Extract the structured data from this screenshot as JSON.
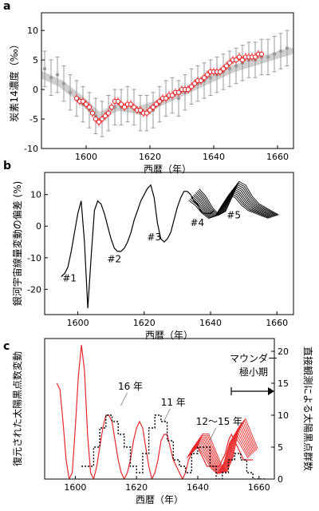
{
  "chart_data": [
    {
      "panel": "a",
      "type": "scatter",
      "xlabel": "西暦（年）",
      "ylabel": "炭素14濃度（‰）",
      "xlim": [
        1586,
        1665
      ],
      "ylim": [
        -10,
        13
      ],
      "xticks": [
        1600,
        1620,
        1640,
        1660
      ],
      "yticks": [
        -10,
        -5,
        0,
        5,
        10
      ],
      "grid": false,
      "colors": {
        "gray_data": "#9a9a9a",
        "red_data": "#e8282b",
        "smooth_band": "#cfcfcf"
      },
      "series": [
        {
          "style": "gray-errorbars",
          "x": [
            1587,
            1589,
            1591,
            1593,
            1595,
            1597,
            1599,
            1601,
            1603,
            1605,
            1607,
            1609,
            1611,
            1613,
            1615,
            1617,
            1619,
            1621,
            1623,
            1625,
            1627,
            1629,
            1631,
            1633,
            1635,
            1637,
            1639,
            1641,
            1643,
            1645,
            1647,
            1649,
            1651,
            1653,
            1655,
            1657,
            1659,
            1661,
            1663
          ],
          "y": [
            3.5,
            2.0,
            2.5,
            1.0,
            -0.5,
            -1.5,
            -2.5,
            -3.5,
            -4.5,
            -5.0,
            -4.0,
            -3.0,
            -3.0,
            -2.5,
            -3.0,
            -4.0,
            -4.0,
            -3.5,
            -2.5,
            -1.5,
            -1.0,
            -1.5,
            -0.5,
            0.5,
            1.0,
            1.5,
            2.0,
            2.5,
            3.0,
            3.5,
            4.0,
            4.5,
            5.0,
            5.0,
            5.5,
            5.5,
            6.0,
            6.5,
            7.0
          ],
          "err": [
            3.0,
            3.0,
            3.0,
            3.0,
            3.0,
            3.0,
            3.0,
            3.0,
            3.0,
            3.0,
            3.0,
            3.0,
            3.0,
            3.0,
            3.0,
            3.0,
            3.0,
            3.0,
            3.0,
            3.0,
            3.0,
            3.0,
            3.0,
            3.0,
            3.0,
            3.0,
            3.0,
            3.0,
            3.0,
            3.0,
            3.0,
            3.0,
            3.0,
            3.0,
            3.0,
            3.0,
            3.0,
            3.0,
            3.0
          ]
        },
        {
          "style": "red-open-circles",
          "x": [
            1597,
            1598,
            1599,
            1600,
            1601,
            1602,
            1603,
            1604,
            1605,
            1606,
            1607,
            1608,
            1609,
            1610,
            1611,
            1612,
            1613,
            1614,
            1615,
            1616,
            1617,
            1618,
            1619,
            1620,
            1621,
            1622,
            1623,
            1624,
            1625,
            1626,
            1627,
            1628,
            1629,
            1630,
            1631,
            1632,
            1633,
            1634,
            1635,
            1636,
            1637,
            1638,
            1639,
            1640,
            1641,
            1642,
            1643,
            1644,
            1645,
            1646,
            1647,
            1648,
            1649,
            1650,
            1651,
            1652,
            1653,
            1654,
            1655
          ],
          "y": [
            -1.5,
            -2.0,
            -2.0,
            -2.5,
            -3.0,
            -4.0,
            -5.0,
            -5.5,
            -5.0,
            -4.5,
            -4.0,
            -3.0,
            -2.0,
            -2.0,
            -2.5,
            -3.0,
            -2.5,
            -2.5,
            -3.0,
            -3.5,
            -3.5,
            -4.0,
            -4.0,
            -3.5,
            -3.0,
            -2.5,
            -2.0,
            -1.5,
            -1.5,
            -1.0,
            -1.0,
            -0.5,
            -0.5,
            0.0,
            0.0,
            0.0,
            0.5,
            1.0,
            1.5,
            1.5,
            2.0,
            2.5,
            3.0,
            3.0,
            3.0,
            3.0,
            3.5,
            4.0,
            4.5,
            5.0,
            5.0,
            5.5,
            5.0,
            5.5,
            5.5,
            5.5,
            5.5,
            6.0,
            6.0
          ],
          "err": [
            0.7,
            0.7,
            0.7,
            0.7,
            0.7,
            0.7,
            0.7,
            0.7,
            0.7,
            0.7,
            0.7,
            0.7,
            0.7,
            0.7,
            0.7,
            0.7,
            0.7,
            0.7,
            0.7,
            0.7,
            0.7,
            0.7,
            0.7,
            0.7,
            0.7,
            0.7,
            0.7,
            0.7,
            0.7,
            0.7,
            0.7,
            0.7,
            0.7,
            0.7,
            0.7,
            0.7,
            0.7,
            0.7,
            0.7,
            0.7,
            0.7,
            0.7,
            0.7,
            0.7,
            0.7,
            0.7,
            0.7,
            0.7,
            0.7,
            0.7,
            0.7,
            0.7,
            0.7,
            0.7,
            0.7,
            0.7,
            0.7,
            0.7,
            0.7
          ]
        },
        {
          "style": "gray-smooth-band",
          "x": [
            1586,
            1592,
            1598,
            1604,
            1610,
            1616,
            1622,
            1628,
            1634,
            1640,
            1646,
            1652,
            1658,
            1664
          ],
          "y": [
            2.5,
            1.0,
            -1.5,
            -4.5,
            -3.0,
            -3.5,
            -2.5,
            -1.0,
            0.5,
            2.0,
            3.5,
            4.5,
            5.5,
            6.5
          ]
        }
      ]
    },
    {
      "panel": "b",
      "type": "line",
      "xlabel": "西暦（年）",
      "ylabel": "銀河宇宙線量変動の偏差 (%)",
      "xlim": [
        1590,
        1665
      ],
      "ylim": [
        -28,
        17
      ],
      "xticks": [
        1600,
        1620,
        1640,
        1660
      ],
      "yticks": [
        -20,
        -10,
        0,
        10
      ],
      "grid": false,
      "annotations": [
        {
          "text": "#1",
          "x": 1597.5,
          "y": -17.5
        },
        {
          "text": "#2",
          "x": 1611,
          "y": -11.5
        },
        {
          "text": "#3",
          "x": 1623,
          "y": -4.5
        },
        {
          "text": "#4",
          "x": 1636,
          "y": 0
        },
        {
          "text": "#5",
          "x": 1647,
          "y": 2.5
        }
      ],
      "series": [
        {
          "style": "black-line",
          "x": [
            1595,
            1596,
            1597,
            1598,
            1599,
            1600,
            1601,
            1602,
            1603,
            1604,
            1605,
            1606,
            1607,
            1608,
            1609,
            1610,
            1611,
            1612,
            1613,
            1614,
            1615,
            1616,
            1617,
            1618,
            1619,
            1620,
            1621,
            1622,
            1623,
            1624,
            1625,
            1626,
            1627,
            1628,
            1629,
            1630,
            1631,
            1632,
            1633,
            1634,
            1635,
            1636,
            1637,
            1638,
            1639,
            1640,
            1641
          ],
          "y": [
            -16,
            -15,
            -13,
            -8,
            -2,
            4,
            8,
            -5,
            -26,
            -10,
            5,
            8,
            7,
            4,
            0,
            -4,
            -7,
            -8,
            -8,
            -7,
            -5,
            -2,
            2,
            5,
            8,
            10,
            12,
            13,
            9,
            1,
            -4,
            -5,
            -4,
            -2,
            2,
            6,
            9,
            11,
            11,
            10,
            8,
            7,
            5,
            4,
            4,
            4,
            5
          ]
        },
        {
          "style": "black-line-ensemble",
          "x": [
            1635,
            1637,
            1639,
            1641,
            1643,
            1645,
            1647,
            1649,
            1651,
            1653,
            1655,
            1657,
            1659
          ],
          "y": [
            10,
            8,
            5,
            3,
            4,
            8,
            12,
            11,
            8,
            6,
            5,
            4,
            3
          ]
        }
      ]
    },
    {
      "panel": "c",
      "type": "line",
      "xlabel": "西暦（年）",
      "ylabel": "復元された太陽黒点数変動",
      "y2label": "直接観測による太陽黒点群数",
      "xlim": [
        1590,
        1665
      ],
      "ylim": [
        0,
        22
      ],
      "xticks": [
        1600,
        1620,
        1640,
        1660
      ],
      "y2ticks": [
        0,
        5,
        10,
        15,
        20
      ],
      "grid": false,
      "annotations": [
        {
          "text": "16 年",
          "x": 1618,
          "y": 14
        },
        {
          "text": "11 年",
          "x": 1632,
          "y": 11.5
        },
        {
          "text": "12～15 年",
          "x": 1647,
          "y": 8.5
        }
      ],
      "inset_text": [
        "マウンダー",
        "極小期"
      ],
      "colors": {
        "red_line": "#e8282b",
        "black_dotted": "#000000"
      },
      "series": [
        {
          "style": "red-line",
          "x": [
            1594,
            1595,
            1596,
            1597,
            1598,
            1599,
            1600,
            1601,
            1602,
            1603,
            1604,
            1605,
            1606,
            1607,
            1608,
            1609,
            1610,
            1611,
            1612,
            1613,
            1614,
            1615,
            1616,
            1617,
            1618,
            1619,
            1620,
            1621,
            1622,
            1623,
            1624,
            1625,
            1626,
            1627,
            1628,
            1629,
            1630,
            1631,
            1632,
            1633,
            1634,
            1635,
            1636,
            1637,
            1638,
            1639,
            1640,
            1641,
            1642,
            1643,
            1644,
            1645,
            1646,
            1647,
            1648,
            1649,
            1650,
            1651,
            1652,
            1653,
            1654,
            1655,
            1656,
            1657,
            1658
          ],
          "y": [
            15,
            14,
            9,
            3,
            0,
            1,
            8,
            16,
            21,
            17,
            7,
            1,
            0,
            2,
            5,
            8,
            10,
            10,
            9,
            6,
            3,
            1,
            0,
            1,
            3,
            6,
            8,
            9,
            8,
            5,
            2,
            0,
            1,
            3,
            6,
            7,
            7,
            5,
            3,
            2,
            1,
            0,
            1,
            3,
            4,
            5,
            5,
            4,
            3,
            2,
            2,
            2,
            2,
            2,
            3,
            4,
            6,
            7,
            6,
            5,
            4,
            3,
            3,
            3,
            3
          ]
        },
        {
          "style": "red-line-ensemble",
          "x": [
            1638,
            1640,
            1642,
            1644,
            1646,
            1648,
            1650,
            1652,
            1654,
            1656,
            1658
          ],
          "y": [
            4,
            6,
            6,
            4,
            2,
            1,
            3,
            7,
            8,
            6,
            4
          ]
        },
        {
          "style": "black-dotted-step",
          "x": [
            1602,
            1604,
            1606,
            1608,
            1610,
            1612,
            1614,
            1616,
            1618,
            1620,
            1622,
            1624,
            1626,
            1628,
            1630,
            1632,
            1634,
            1636,
            1638,
            1640,
            1642,
            1644,
            1646,
            1648,
            1650,
            1652,
            1654,
            1656,
            1658,
            1660
          ],
          "y": [
            2,
            2,
            5,
            8,
            10,
            9,
            7,
            5,
            2,
            1,
            4,
            8,
            10,
            9,
            6,
            3,
            2,
            1,
            4,
            5,
            5,
            2,
            0,
            1,
            3,
            4,
            3,
            1,
            0,
            0
          ]
        }
      ]
    }
  ]
}
